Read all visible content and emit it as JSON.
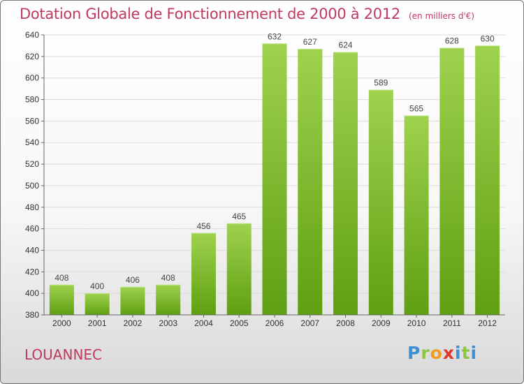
{
  "header": {
    "title": "Dotation Globale de Fonctionnement de 2000 à 2012",
    "subtitle": "(en milliers d'€)"
  },
  "footer": {
    "city": "LOUANNEC",
    "logo": "Proxiti"
  },
  "colors": {
    "bar_top": "#9fd24e",
    "bar_bottom": "#5f9f12",
    "title": "#c0395e"
  },
  "chart_data": {
    "type": "bar",
    "title": "Dotation Globale de Fonctionnement de 2000 à 2012",
    "subtitle": "(en milliers d'€)",
    "xlabel": "",
    "ylabel": "",
    "categories": [
      "2000",
      "2001",
      "2002",
      "2003",
      "2004",
      "2005",
      "2006",
      "2007",
      "2008",
      "2009",
      "2010",
      "2011",
      "2012"
    ],
    "values": [
      408,
      400,
      406,
      408,
      456,
      465,
      632,
      627,
      624,
      589,
      565,
      628,
      630
    ],
    "ylim": [
      380,
      640
    ],
    "yticks": [
      380,
      400,
      420,
      440,
      460,
      480,
      500,
      520,
      540,
      560,
      580,
      600,
      620,
      640
    ],
    "grid": true,
    "legend": "none"
  }
}
